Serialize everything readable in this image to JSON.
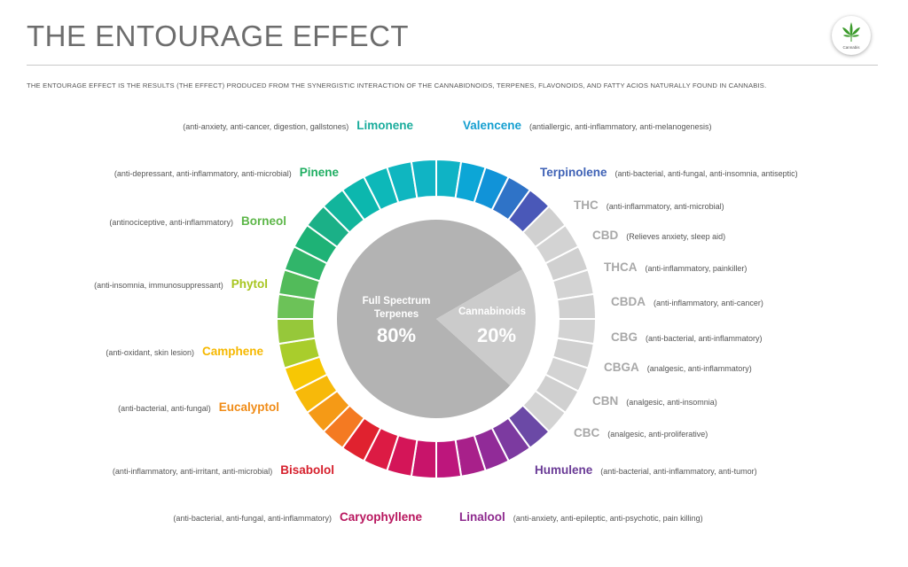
{
  "header": {
    "title": "THE ENTOURAGE EFFECT",
    "subtitle": "THE ENTOURAGE EFFECT IS THE RESULTS (THE EFFECT) PRODUCED FROM THE SYNERGISTIC INTERACTION OF THE CANNABIDNOIDS, TERPENES, FLAVONOIDS, AND FATTY ACIOS NATURALLY FOUND IN CANNABIS.",
    "badge_text": "Cannabis",
    "badge_icon": "cannabis-leaf-icon"
  },
  "chart_data": {
    "type": "pie",
    "center": {
      "segments": [
        {
          "label": "Full Spectrum Terpenes",
          "value_label": "80%",
          "value": 80,
          "color": "#b3b3b3"
        },
        {
          "label": "Cannabinoids",
          "value_label": "20%",
          "value": 20,
          "color": "#cbcbcb"
        }
      ]
    },
    "ring_segments": 40,
    "items": [
      {
        "name": "Valencene",
        "desc": "(antiallergic, anti-inflammatory, anti-melanogenesis)",
        "color": "#159fd0",
        "side": "right"
      },
      {
        "name": "Terpinolene",
        "desc": "(anti-bacterial, anti-fungal, anti-insomnia, antiseptic)",
        "color": "#3f62b6",
        "side": "right"
      },
      {
        "name": "THC",
        "desc": "(anti-inflammatory, anti-microbial)",
        "color": "#a8a8a8",
        "side": "right"
      },
      {
        "name": "CBD",
        "desc": "(Relieves anxiety, sleep aid)",
        "color": "#a8a8a8",
        "side": "right"
      },
      {
        "name": "THCA",
        "desc": "(anti-inflammatory, painkiller)",
        "color": "#a8a8a8",
        "side": "right"
      },
      {
        "name": "CBDA",
        "desc": "(anti-inflammatory, anti-cancer)",
        "color": "#a8a8a8",
        "side": "right"
      },
      {
        "name": "CBG",
        "desc": "(anti-bacterial, anti-inflammatory)",
        "color": "#a8a8a8",
        "side": "right"
      },
      {
        "name": "CBGA",
        "desc": "(analgesic, anti-inflammatory)",
        "color": "#a8a8a8",
        "side": "right"
      },
      {
        "name": "CBN",
        "desc": "(analgesic, anti-insomnia)",
        "color": "#a8a8a8",
        "side": "right"
      },
      {
        "name": "CBC",
        "desc": "(analgesic, anti-proliferative)",
        "color": "#a8a8a8",
        "side": "right"
      },
      {
        "name": "Humulene",
        "desc": "(anti-bacterial, anti-inflammatory, anti-tumor)",
        "color": "#6a3b96",
        "side": "right"
      },
      {
        "name": "Linalool",
        "desc": "(anti-anxiety, anti-epileptic, anti-psychotic, pain killing)",
        "color": "#8e2a8e",
        "side": "right"
      },
      {
        "name": "Caryophyllene",
        "desc": "(anti-bacterial, anti-fungal, anti-inflammatory)",
        "color": "#b8165e",
        "side": "left"
      },
      {
        "name": "Bisabolol",
        "desc": "(anti-inflammatory, anti-irritant, anti-microbial)",
        "color": "#d6202d",
        "side": "left"
      },
      {
        "name": "Eucalyptol",
        "desc": "(anti-bacterial, anti-fungal)",
        "color": "#f08b16",
        "side": "left"
      },
      {
        "name": "Camphene",
        "desc": "(anti-oxidant, skin lesion)",
        "color": "#f6b800",
        "side": "left"
      },
      {
        "name": "Phytol",
        "desc": "(anti-insomnia, immunosuppressant)",
        "color": "#a7c51f",
        "side": "left"
      },
      {
        "name": "Borneol",
        "desc": "(antinociceptive, anti-inflammatory)",
        "color": "#5cb648",
        "side": "left"
      },
      {
        "name": "Pinene",
        "desc": "(anti-depressant, anti-inflammatory, anti-microbial)",
        "color": "#1fae62",
        "side": "left"
      },
      {
        "name": "Limonene",
        "desc": "(anti-anxiety, anti-cancer, digestion, gallstones)",
        "color": "#1aac9c",
        "side": "left"
      }
    ],
    "ring_colors": [
      "#0fb3c5",
      "#0ca6d6",
      "#1193d8",
      "#2f73c7",
      "#4a58b8",
      "#d0d0d0",
      "#d3d3d3",
      "#d0d0d0",
      "#d3d3d3",
      "#d0d0d0",
      "#d3d3d3",
      "#d0d0d0",
      "#d3d3d3",
      "#d0d0d0",
      "#d3d3d3",
      "#6b49a6",
      "#7c3aa0",
      "#912b98",
      "#a8208a",
      "#bd167c",
      "#c8146a",
      "#d41558",
      "#dc1b44",
      "#e0222f",
      "#f47a22",
      "#f59a16",
      "#f7b90a",
      "#f7c704",
      "#a9cd2c",
      "#96c83a",
      "#6cc258",
      "#52bb5a",
      "#31b56a",
      "#1eb276",
      "#1bb087",
      "#12b59c",
      "#0cb7ae",
      "#0db8b9",
      "#0fb6c0",
      "#10b4c4"
    ]
  }
}
